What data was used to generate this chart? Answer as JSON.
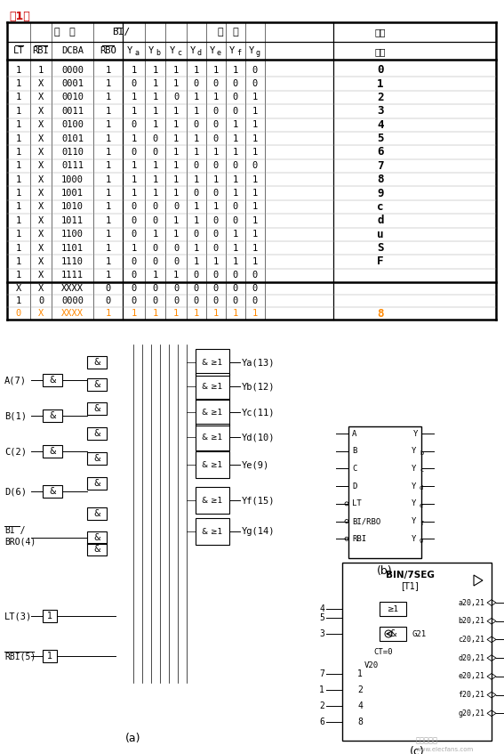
{
  "title": "表1：",
  "bg_color": "#ffffff",
  "truth_table": [
    [
      "1",
      "1",
      "0000",
      "1",
      "1",
      "1",
      "1",
      "1",
      "1",
      "1",
      "0",
      "0"
    ],
    [
      "1",
      "X",
      "0001",
      "1",
      "0",
      "1",
      "1",
      "0",
      "0",
      "0",
      "0",
      "1"
    ],
    [
      "1",
      "X",
      "0010",
      "1",
      "1",
      "1",
      "0",
      "1",
      "1",
      "0",
      "1",
      "2"
    ],
    [
      "1",
      "X",
      "0011",
      "1",
      "1",
      "1",
      "1",
      "1",
      "0",
      "0",
      "1",
      "3"
    ],
    [
      "1",
      "X",
      "0100",
      "1",
      "0",
      "1",
      "1",
      "0",
      "0",
      "1",
      "1",
      "4"
    ],
    [
      "1",
      "X",
      "0101",
      "1",
      "1",
      "0",
      "1",
      "1",
      "0",
      "1",
      "1",
      "5"
    ],
    [
      "1",
      "X",
      "0110",
      "1",
      "0",
      "0",
      "1",
      "1",
      "1",
      "1",
      "1",
      "6"
    ],
    [
      "1",
      "X",
      "0111",
      "1",
      "1",
      "1",
      "1",
      "0",
      "0",
      "0",
      "0",
      "7"
    ],
    [
      "1",
      "X",
      "1000",
      "1",
      "1",
      "1",
      "1",
      "1",
      "1",
      "1",
      "1",
      "8"
    ],
    [
      "1",
      "X",
      "1001",
      "1",
      "1",
      "1",
      "1",
      "0",
      "0",
      "1",
      "1",
      "9"
    ],
    [
      "1",
      "X",
      "1010",
      "1",
      "0",
      "0",
      "0",
      "1",
      "1",
      "0",
      "1",
      "c"
    ],
    [
      "1",
      "X",
      "1011",
      "1",
      "0",
      "0",
      "1",
      "1",
      "0",
      "0",
      "1",
      "d"
    ],
    [
      "1",
      "X",
      "1100",
      "1",
      "0",
      "1",
      "1",
      "0",
      "0",
      "1",
      "1",
      "u"
    ],
    [
      "1",
      "X",
      "1101",
      "1",
      "1",
      "0",
      "0",
      "1",
      "0",
      "1",
      "1",
      "S"
    ],
    [
      "1",
      "X",
      "1110",
      "1",
      "0",
      "0",
      "0",
      "1",
      "1",
      "1",
      "1",
      "F"
    ],
    [
      "1",
      "X",
      "1111",
      "1",
      "0",
      "1",
      "1",
      "0",
      "0",
      "0",
      "0",
      ""
    ]
  ],
  "special_rows": [
    [
      "X",
      "X",
      "XXXX",
      "0",
      "0",
      "0",
      "0",
      "0",
      "0",
      "0",
      "0",
      ""
    ],
    [
      "1",
      "0",
      "0000",
      "0",
      "0",
      "0",
      "0",
      "0",
      "0",
      "0",
      "0",
      ""
    ],
    [
      "0",
      "X",
      "XXXX",
      "1",
      "1",
      "1",
      "1",
      "1",
      "1",
      "1",
      "1",
      "8"
    ]
  ],
  "font_color": "#000000",
  "orange_color": "#ff8800",
  "pins_left_b": [
    "A",
    "B",
    "C",
    "D",
    "LT",
    "BI/RBO",
    "RBI"
  ],
  "pins_right_b": [
    "Y",
    "Yb",
    "Yc",
    "Yd",
    "Ye",
    "Yf",
    "Yg"
  ],
  "out_labels_c": [
    "a20,21",
    "b20,21",
    "c20,21",
    "d20,21",
    "e20,21",
    "f20,21",
    "g20,21"
  ],
  "out_nums_c": [
    "13",
    "12",
    "11",
    "10",
    "9",
    "15",
    "14"
  ],
  "left_pins_c": [
    "4",
    "5",
    "3",
    "7",
    "1",
    "2",
    "6"
  ],
  "left_vals_c": [
    "1",
    "2",
    "4",
    "8"
  ]
}
